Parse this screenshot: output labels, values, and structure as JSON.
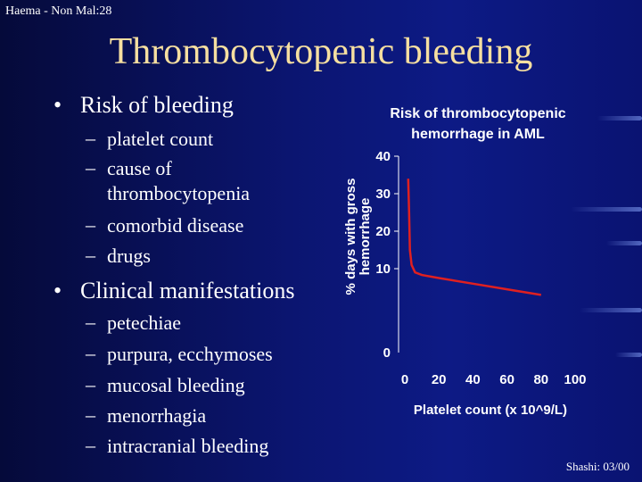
{
  "header": "Haema - Non Mal:28",
  "title": "Thrombocytopenic bleeding",
  "bullets": [
    {
      "label": "Risk of bleeding",
      "items": [
        "platelet count",
        "cause of thrombocytopenia",
        "comorbid disease",
        "drugs"
      ]
    },
    {
      "label": "Clinical manifestations",
      "items": [
        "petechiae",
        "purpura, ecchymoses",
        "mucosal bleeding",
        "menorrhagia",
        "intracranial bleeding"
      ]
    }
  ],
  "footer": "Shashi: 03/00",
  "chart_data": {
    "type": "line",
    "title": "Risk of thrombocytopenic hemorrhage in AML",
    "title_lines": [
      "Risk of thrombocytopenic",
      "hemorrhage in AML"
    ],
    "xlabel": "Platelet count (x 10^9/L)",
    "ylabel_lines": [
      "% days with gross",
      "hemorrhage"
    ],
    "x_ticks": [
      "0",
      "20",
      "40",
      "60",
      "80",
      "100"
    ],
    "y_ticks": [
      "0",
      "10",
      "20",
      "30",
      "40"
    ],
    "xlim": [
      0,
      100
    ],
    "ylim": [
      0,
      40
    ],
    "grid": false,
    "series": [
      {
        "color": "#e02020",
        "x": [
          2,
          2.5,
          3,
          4,
          6,
          10,
          20,
          40,
          60,
          80
        ],
        "y": [
          34,
          25,
          15,
          11,
          9,
          8.3,
          7.5,
          6,
          4.5,
          3
        ]
      }
    ]
  }
}
